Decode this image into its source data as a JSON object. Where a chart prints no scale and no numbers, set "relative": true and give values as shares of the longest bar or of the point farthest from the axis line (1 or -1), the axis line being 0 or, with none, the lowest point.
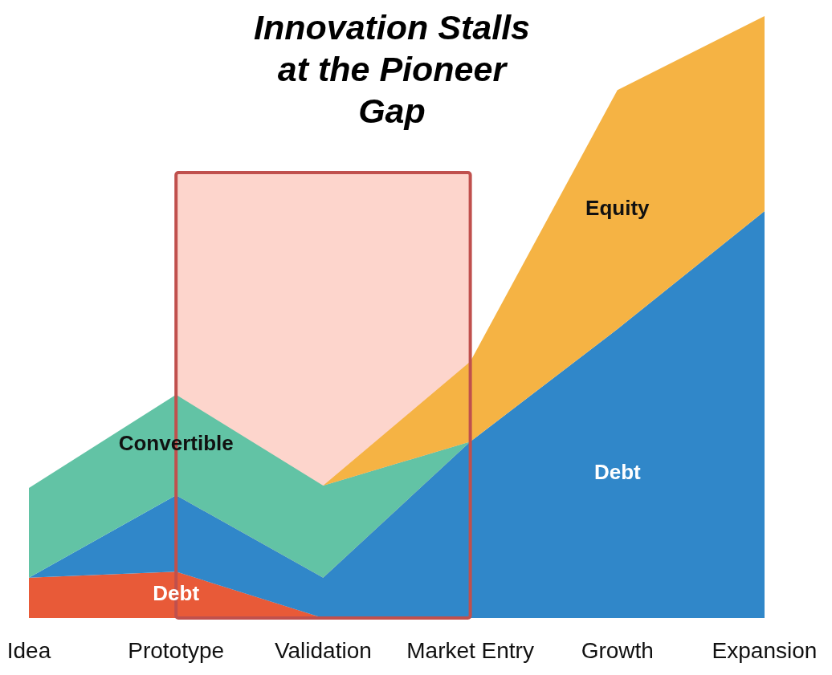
{
  "chart_data": {
    "type": "area",
    "title": "Innovation Stalls at the Pioneer Gap",
    "stacked": true,
    "relative": true,
    "legend": false,
    "grid": false,
    "categories": [
      "Idea",
      "Prototype",
      "Validation",
      "Market Entry",
      "Growth",
      "Expansion"
    ],
    "series": [
      {
        "name": "Debt",
        "color": "#e85a38",
        "values": [
          0.067,
          0.077,
          0,
          0,
          0,
          0
        ]
      },
      {
        "name": "Debt",
        "color": "#3087c9",
        "values": [
          0,
          0.127,
          0.067,
          0.293,
          0.48,
          0.676
        ]
      },
      {
        "name": "Convertible",
        "color": "#62c3a5",
        "values": [
          0.149,
          0.167,
          0.153,
          0,
          0,
          0
        ]
      },
      {
        "name": "Equity",
        "color": "#f5b344",
        "values": [
          0,
          0,
          0,
          0.133,
          0.397,
          0.324
        ]
      }
    ],
    "bands": [
      {
        "axis": "x",
        "from": "Prototype",
        "to": "Market Entry",
        "color": "#fdd5cc"
      }
    ]
  }
}
